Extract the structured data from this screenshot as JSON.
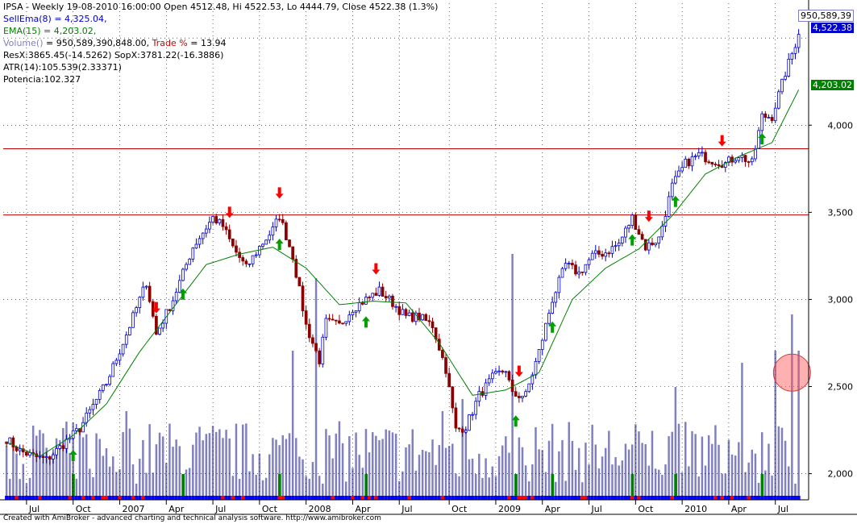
{
  "header": {
    "line1": "IPSA - Weekly 19-08-2010 16:00:00 Open 4512.48, Hi 4522.53, Lo 4444.79, Close 4522.38 (1.3%)",
    "sellema": "SellEma(8) = 4,325.04,",
    "ema": "EMA(15) = 4,203.02,",
    "volume_label": "Volume()",
    "volume_value": " = 950,589,390,848.00, ",
    "trade_label": "Trade % ",
    "trade_value": "= 13.94",
    "res": "ResX:3865.45(-14.5262) SopX:3781.22(-16.3886)",
    "atr": "ATR(14):105.539(2.33371)",
    "potencia": "Potencia:102.327"
  },
  "footer": "Created with AmiBroker - advanced charting and technical analysis software. http://www.amibroker.com",
  "price_labels": {
    "volume": "950,589,39",
    "close": "4,522.38",
    "ema": "4,203.02"
  },
  "colors": {
    "up": "#0000cc",
    "down": "#8b0000",
    "ema": "#008000",
    "volume": "#8080c0",
    "signal_down": "#ff0000",
    "signal_up": "#00a000",
    "hline": "#c00000"
  },
  "chart_data": {
    "type": "candlestick",
    "title": "IPSA - Weekly",
    "ylim": [
      1850,
      4700
    ],
    "y_ticks": [
      "2,000",
      "2,500",
      "3,000",
      "3,500",
      "4,000"
    ],
    "x_labels": [
      "Jul",
      "Oct",
      "2007",
      "Apr",
      "Jul",
      "Oct",
      "2008",
      "Apr",
      "Jul",
      "Oct",
      "2009",
      "Apr",
      "Jul",
      "Oct",
      "2010",
      "Apr",
      "Jul"
    ],
    "horizontal_lines": [
      3865,
      3485
    ],
    "price_anchors": [
      [
        0,
        2200
      ],
      [
        4,
        2130
      ],
      [
        8,
        2100
      ],
      [
        12,
        2080
      ],
      [
        16,
        2150
      ],
      [
        22,
        2260
      ],
      [
        30,
        2520
      ],
      [
        36,
        2800
      ],
      [
        42,
        3100
      ],
      [
        45,
        2800
      ],
      [
        50,
        3000
      ],
      [
        56,
        3300
      ],
      [
        62,
        3470
      ],
      [
        65,
        3420
      ],
      [
        68,
        3300
      ],
      [
        72,
        3180
      ],
      [
        76,
        3300
      ],
      [
        80,
        3400
      ],
      [
        82,
        3480
      ],
      [
        86,
        3250
      ],
      [
        90,
        2850
      ],
      [
        94,
        2650
      ],
      [
        96,
        2870
      ],
      [
        100,
        2850
      ],
      [
        104,
        2950
      ],
      [
        108,
        3000
      ],
      [
        112,
        3050
      ],
      [
        116,
        2980
      ],
      [
        120,
        2900
      ],
      [
        124,
        2900
      ],
      [
        128,
        2850
      ],
      [
        132,
        2600
      ],
      [
        135,
        2250
      ],
      [
        138,
        2270
      ],
      [
        142,
        2450
      ],
      [
        146,
        2550
      ],
      [
        150,
        2600
      ],
      [
        152,
        2450
      ],
      [
        156,
        2450
      ],
      [
        160,
        2700
      ],
      [
        164,
        3000
      ],
      [
        168,
        3200
      ],
      [
        172,
        3150
      ],
      [
        176,
        3250
      ],
      [
        180,
        3270
      ],
      [
        184,
        3320
      ],
      [
        188,
        3470
      ],
      [
        192,
        3300
      ],
      [
        196,
        3350
      ],
      [
        200,
        3650
      ],
      [
        204,
        3780
      ],
      [
        208,
        3830
      ],
      [
        212,
        3800
      ],
      [
        216,
        3780
      ],
      [
        220,
        3830
      ],
      [
        224,
        3780
      ],
      [
        227,
        4050
      ],
      [
        230,
        4050
      ],
      [
        234,
        4300
      ],
      [
        238,
        4522
      ]
    ],
    "ema_anchors": [
      [
        0,
        2180
      ],
      [
        10,
        2100
      ],
      [
        20,
        2220
      ],
      [
        30,
        2400
      ],
      [
        40,
        2700
      ],
      [
        50,
        2950
      ],
      [
        60,
        3200
      ],
      [
        70,
        3260
      ],
      [
        80,
        3300
      ],
      [
        90,
        3180
      ],
      [
        100,
        2970
      ],
      [
        110,
        2990
      ],
      [
        120,
        2980
      ],
      [
        130,
        2750
      ],
      [
        140,
        2450
      ],
      [
        150,
        2480
      ],
      [
        160,
        2580
      ],
      [
        170,
        3000
      ],
      [
        180,
        3180
      ],
      [
        190,
        3290
      ],
      [
        200,
        3480
      ],
      [
        210,
        3720
      ],
      [
        220,
        3820
      ],
      [
        230,
        3900
      ],
      [
        238,
        4203
      ]
    ],
    "volume_spikes": [
      [
        36,
        0.35
      ],
      [
        86,
        0.6
      ],
      [
        93,
        0.9
      ],
      [
        131,
        0.35
      ],
      [
        137,
        0.4
      ],
      [
        152,
        1.0
      ],
      [
        201,
        0.45
      ],
      [
        221,
        0.55
      ],
      [
        231,
        0.6
      ],
      [
        236,
        0.75
      ],
      [
        238,
        0.6
      ]
    ],
    "sell_signals": [
      45,
      67,
      82,
      111,
      154,
      193,
      215
    ],
    "buy_signals": [
      20,
      53,
      82,
      108,
      153,
      164,
      188,
      201,
      227
    ],
    "highlight_circle": {
      "x_bar": 236,
      "price": 2580
    }
  }
}
